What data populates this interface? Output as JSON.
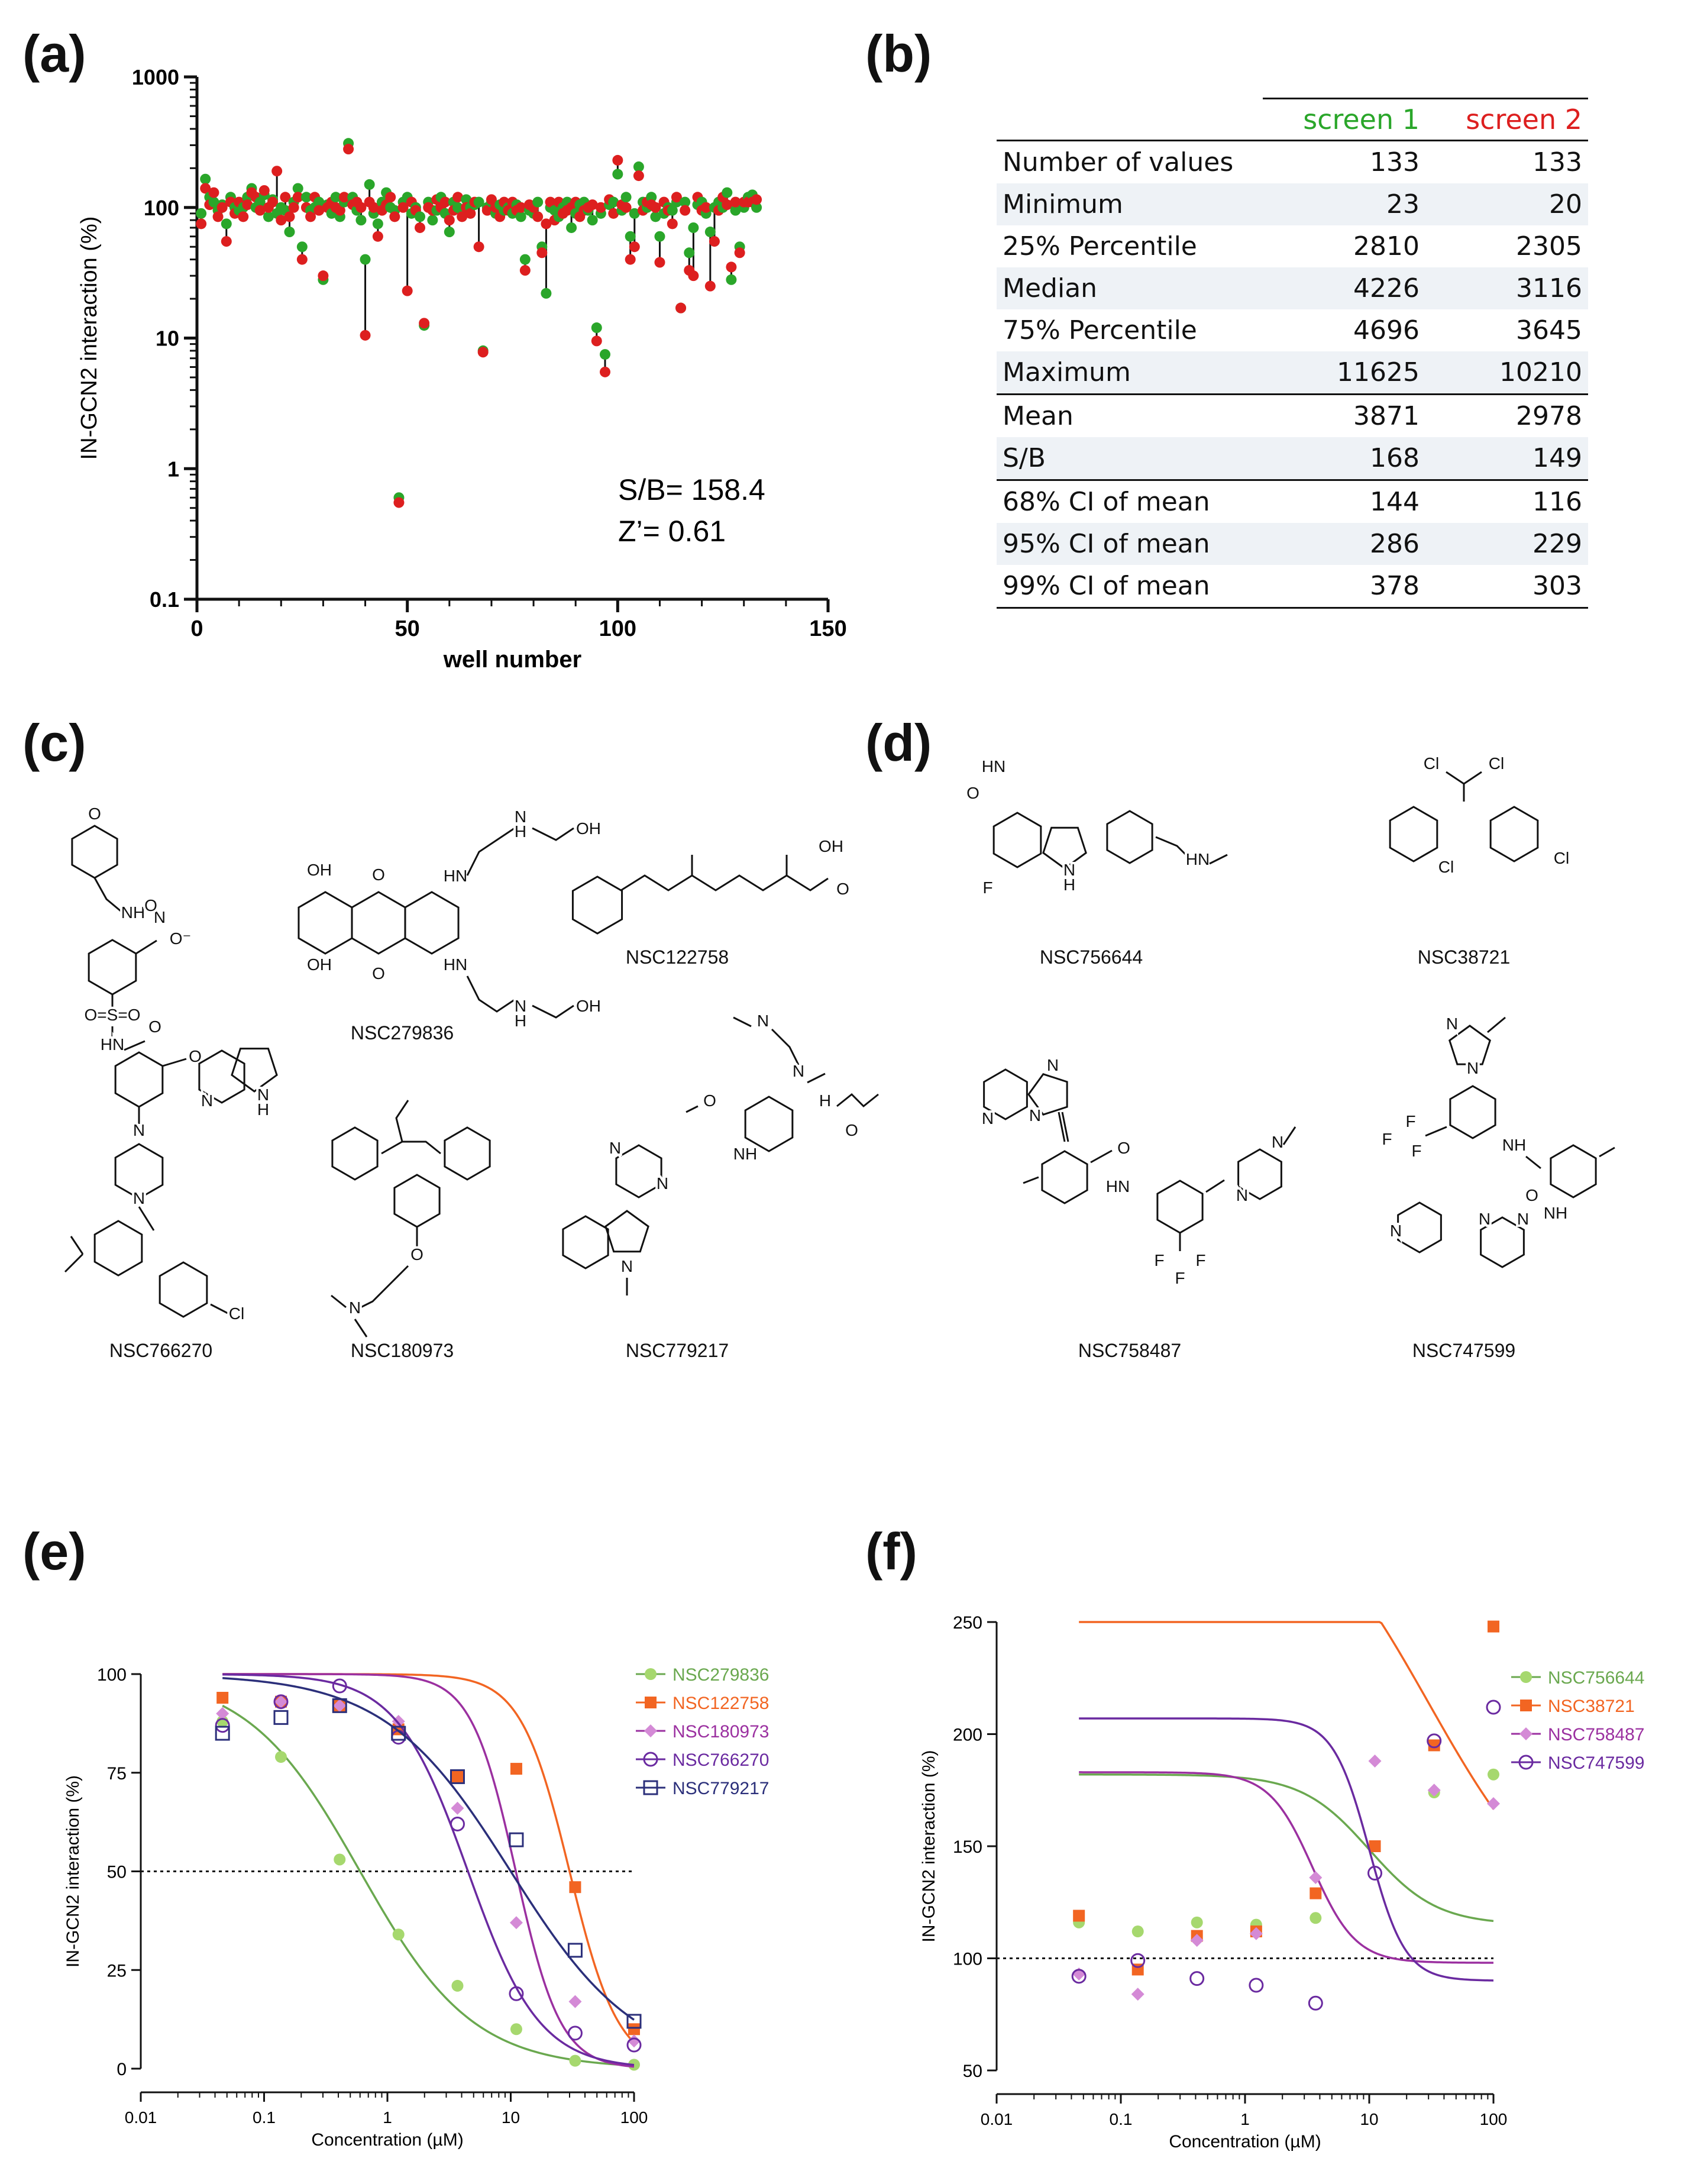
{
  "panel_letters": {
    "a": "(a)",
    "b": "(b)",
    "c": "(c)",
    "d": "(d)",
    "e": "(e)",
    "f": "(f)"
  },
  "colors": {
    "screen1": "#2aa62a",
    "screen2": "#dd1f1f",
    "green": "#6aa84f",
    "orange": "#f26522",
    "magenta": "#9b30a0",
    "purple": "#6a2aa0",
    "navy": "#2b2f7a",
    "lightgreen": "#a6d86e",
    "lightmagenta": "#d48ad6"
  },
  "chart_data": [
    {
      "id": "a",
      "type": "scatter",
      "xlabel": "well number",
      "ylabel": "IN-GCN2 interaction (%)",
      "yscale": "log",
      "xlim": [
        0,
        150
      ],
      "ylim": [
        0.1,
        1000
      ],
      "xticks": [
        "0",
        "50",
        "100",
        "150"
      ],
      "yticks": [
        "0.1",
        "1",
        "10",
        "100",
        "1000"
      ],
      "annotations": [
        "S/B= 158.4",
        "Z’= 0.61"
      ],
      "series": [
        {
          "name": "screen 1",
          "color": "#2aa62a"
        },
        {
          "name": "screen 2",
          "color": "#dd1f1f"
        }
      ],
      "points": [
        [
          1,
          90,
          75
        ],
        [
          2,
          165,
          140
        ],
        [
          3,
          120,
          105
        ],
        [
          4,
          110,
          130
        ],
        [
          5,
          95,
          85
        ],
        [
          6,
          105,
          100
        ],
        [
          7,
          75,
          55
        ],
        [
          8,
          120,
          110
        ],
        [
          9,
          100,
          90
        ],
        [
          10,
          95,
          110
        ],
        [
          11,
          100,
          85
        ],
        [
          12,
          120,
          105
        ],
        [
          13,
          140,
          130
        ],
        [
          14,
          100,
          120
        ],
        [
          15,
          110,
          95
        ],
        [
          16,
          125,
          135
        ],
        [
          17,
          85,
          100
        ],
        [
          18,
          115,
          110
        ],
        [
          19,
          90,
          190
        ],
        [
          20,
          100,
          80
        ],
        [
          21,
          95,
          120
        ],
        [
          22,
          65,
          85
        ],
        [
          23,
          110,
          100
        ],
        [
          24,
          140,
          120
        ],
        [
          25,
          50,
          40
        ],
        [
          26,
          120,
          100
        ],
        [
          27,
          95,
          85
        ],
        [
          28,
          100,
          120
        ],
        [
          29,
          110,
          95
        ],
        [
          30,
          28,
          30
        ],
        [
          31,
          105,
          100
        ],
        [
          32,
          90,
          110
        ],
        [
          33,
          120,
          100
        ],
        [
          34,
          85,
          95
        ],
        [
          35,
          110,
          120
        ],
        [
          36,
          310,
          280
        ],
        [
          37,
          120,
          105
        ],
        [
          38,
          95,
          110
        ],
        [
          39,
          80,
          100
        ],
        [
          40,
          40,
          10.5
        ],
        [
          41,
          150,
          110
        ],
        [
          42,
          90,
          100
        ],
        [
          43,
          75,
          60
        ],
        [
          44,
          110,
          95
        ],
        [
          45,
          130,
          105
        ],
        [
          46,
          100,
          120
        ],
        [
          47,
          95,
          85
        ],
        [
          48,
          0.6,
          0.55
        ],
        [
          49,
          110,
          100
        ],
        [
          50,
          120,
          23
        ],
        [
          51,
          90,
          110
        ],
        [
          52,
          100,
          95
        ],
        [
          53,
          85,
          70
        ],
        [
          54,
          12.5,
          13
        ],
        [
          55,
          110,
          100
        ],
        [
          56,
          80,
          95
        ],
        [
          57,
          95,
          115
        ],
        [
          58,
          120,
          100
        ],
        [
          59,
          90,
          110
        ],
        [
          60,
          65,
          80
        ],
        [
          61,
          110,
          95
        ],
        [
          62,
          100,
          120
        ],
        [
          63,
          95,
          85
        ],
        [
          64,
          115,
          100
        ],
        [
          65,
          100,
          90
        ],
        [
          66,
          105,
          110
        ],
        [
          67,
          110,
          50
        ],
        [
          68,
          8,
          7.8
        ],
        [
          69,
          100,
          95
        ],
        [
          70,
          110,
          115
        ],
        [
          71,
          90,
          100
        ],
        [
          72,
          105,
          85
        ],
        [
          73,
          95,
          110
        ],
        [
          74,
          100,
          95
        ],
        [
          75,
          90,
          110
        ],
        [
          76,
          105,
          95
        ],
        [
          77,
          85,
          100
        ],
        [
          78,
          40,
          33
        ],
        [
          79,
          95,
          105
        ],
        [
          80,
          90,
          100
        ],
        [
          81,
          110,
          85
        ],
        [
          82,
          50,
          45
        ],
        [
          83,
          22,
          75
        ],
        [
          84,
          100,
          110
        ],
        [
          85,
          95,
          80
        ],
        [
          86,
          85,
          110
        ],
        [
          87,
          100,
          90
        ],
        [
          88,
          110,
          95
        ],
        [
          89,
          70,
          100
        ],
        [
          90,
          90,
          110
        ],
        [
          91,
          105,
          85
        ],
        [
          92,
          110,
          95
        ],
        [
          93,
          95,
          100
        ],
        [
          94,
          80,
          105
        ],
        [
          95,
          12,
          9.5
        ],
        [
          96,
          90,
          100
        ],
        [
          97,
          7.5,
          5.5
        ],
        [
          98,
          105,
          115
        ],
        [
          99,
          110,
          90
        ],
        [
          100,
          180,
          230
        ],
        [
          101,
          95,
          105
        ],
        [
          102,
          120,
          100
        ],
        [
          103,
          60,
          40
        ],
        [
          104,
          90,
          50
        ],
        [
          105,
          205,
          175
        ],
        [
          106,
          110,
          95
        ],
        [
          107,
          100,
          110
        ],
        [
          108,
          120,
          105
        ],
        [
          109,
          85,
          100
        ],
        [
          110,
          60,
          38
        ],
        [
          111,
          90,
          110
        ],
        [
          112,
          100,
          95
        ],
        [
          113,
          95,
          75
        ],
        [
          114,
          110,
          120
        ],
        [
          115,
          17,
          17
        ],
        [
          116,
          110,
          95
        ],
        [
          117,
          45,
          33
        ],
        [
          118,
          70,
          30
        ],
        [
          119,
          105,
          120
        ],
        [
          120,
          110,
          95
        ],
        [
          121,
          90,
          100
        ],
        [
          122,
          65,
          25
        ],
        [
          123,
          100,
          55
        ],
        [
          124,
          110,
          95
        ],
        [
          125,
          100,
          120
        ],
        [
          126,
          130,
          105
        ],
        [
          127,
          28,
          35
        ],
        [
          128,
          95,
          110
        ],
        [
          129,
          50,
          45
        ],
        [
          130,
          100,
          110
        ],
        [
          131,
          120,
          110
        ],
        [
          132,
          125,
          110
        ],
        [
          133,
          100,
          115
        ]
      ]
    },
    {
      "id": "b",
      "type": "table",
      "columns": [
        "",
        "screen 1",
        "screen 2"
      ],
      "rows": [
        {
          "label": "Number of values",
          "s1": "133",
          "s2": "133"
        },
        {
          "label": "Minimum",
          "s1": "23",
          "s2": "20"
        },
        {
          "label": "25% Percentile",
          "s1": "2810",
          "s2": "2305"
        },
        {
          "label": "Median",
          "s1": "4226",
          "s2": "3116"
        },
        {
          "label": "75% Percentile",
          "s1": "4696",
          "s2": "3645"
        },
        {
          "label": "Maximum",
          "s1": "11625",
          "s2": "10210"
        },
        {
          "label": "Mean",
          "s1": "3871",
          "s2": "2978"
        },
        {
          "label": "S/B",
          "s1": "168",
          "s2": "149"
        },
        {
          "label": "68% CI of mean",
          "s1": "144",
          "s2": "116"
        },
        {
          "label": "95% CI of mean",
          "s1": "286",
          "s2": "229"
        },
        {
          "label": "99% CI of mean",
          "s1": "378",
          "s2": "303"
        }
      ]
    },
    {
      "id": "e",
      "type": "line",
      "xscale": "log",
      "xlabel": "Concentration (µM)",
      "ylabel": "IN-GCN2 interaction (%)",
      "xlim": [
        0.01,
        100
      ],
      "ylim": [
        0,
        100
      ],
      "xticks": [
        "0.01",
        "0.1",
        "1",
        "10",
        "100"
      ],
      "yticks": [
        "0",
        "25",
        "50",
        "75",
        "100"
      ],
      "reference_line": 50,
      "x": [
        0.046,
        0.137,
        0.41,
        1.23,
        3.7,
        11.1,
        33.3,
        100
      ],
      "series": [
        {
          "name": "NSC279836",
          "color": "#6aa84f",
          "pointColor": "#a6d86e",
          "marker": "dot",
          "values": [
            88,
            79,
            53,
            34,
            21,
            10,
            2,
            1
          ],
          "fit": {
            "top": 100,
            "bottom": 0,
            "ic50": 0.6,
            "hill": 0.95
          }
        },
        {
          "name": "NSC122758",
          "color": "#f26522",
          "pointColor": "#f26522",
          "marker": "square",
          "values": [
            94,
            93,
            92,
            86,
            74,
            76,
            46,
            10
          ],
          "fit": {
            "top": 100,
            "bottom": 0,
            "ic50": 30,
            "hill": 2.2
          }
        },
        {
          "name": "NSC180973",
          "color": "#9b30a0",
          "pointColor": "#d48ad6",
          "marker": "diamond",
          "values": [
            90,
            93,
            92,
            88,
            66,
            37,
            17,
            7
          ],
          "fit": {
            "top": 100,
            "bottom": 0,
            "ic50": 11,
            "hill": 2.4
          }
        },
        {
          "name": "NSC766270",
          "color": "#6a2aa0",
          "pointColor": "#6a2aa0",
          "marker": "circle",
          "values": [
            87,
            93,
            97,
            84,
            62,
            19,
            9,
            6
          ],
          "fit": {
            "top": 100,
            "bottom": 0,
            "ic50": 4.5,
            "hill": 1.5
          }
        },
        {
          "name": "NSC779217",
          "color": "#2b2f7a",
          "pointColor": "#2b2f7a",
          "marker": "opensquare",
          "values": [
            85,
            89,
            92,
            85,
            74,
            58,
            30,
            12
          ],
          "fit": {
            "top": 100,
            "bottom": 0,
            "ic50": 10,
            "hill": 0.85
          }
        }
      ]
    },
    {
      "id": "f",
      "type": "line",
      "xscale": "log",
      "xlabel": "Concentration (µM)",
      "ylabel": "IN-GCN2 interaction (%)",
      "xlim": [
        0.01,
        100
      ],
      "ylim": [
        50,
        250
      ],
      "xticks": [
        "0.01",
        "0.1",
        "1",
        "10",
        "100"
      ],
      "yticks": [
        "50",
        "100",
        "150",
        "200",
        "250"
      ],
      "reference_line": 100,
      "x": [
        0.046,
        0.137,
        0.41,
        1.23,
        3.7,
        11.1,
        33.3,
        100
      ],
      "series": [
        {
          "name": "NSC756644",
          "color": "#6aa84f",
          "pointColor": "#a6d86e",
          "marker": "dot",
          "values": [
            116,
            112,
            116,
            115,
            118,
            150,
            174,
            182
          ],
          "fit": {
            "top": 182,
            "bottom": 115,
            "ic50": 10,
            "hill": 1.6
          }
        },
        {
          "name": "NSC38721",
          "color": "#f26522",
          "pointColor": "#f26522",
          "marker": "square",
          "values": [
            119,
            95,
            110,
            112,
            129,
            150,
            195,
            248
          ],
          "fit": {
            "top": 320,
            "bottom": 108,
            "ic50": 30,
            "hill": 0.8
          }
        },
        {
          "name": "NSC758487",
          "color": "#9b30a0",
          "pointColor": "#d48ad6",
          "marker": "diamond",
          "values": [
            93,
            84,
            108,
            111,
            136,
            188,
            175,
            169
          ],
          "fit": {
            "top": 183,
            "bottom": 98,
            "ic50": 3.5,
            "hill": 2.5
          }
        },
        {
          "name": "NSC747599",
          "color": "#6a2aa0",
          "pointColor": "#6a2aa0",
          "marker": "circle",
          "values": [
            92,
            99,
            91,
            88,
            80,
            138,
            197,
            212
          ],
          "fit": {
            "top": 207,
            "bottom": 90,
            "ic50": 10,
            "hill": 3
          }
        }
      ]
    }
  ],
  "compounds_c": [
    {
      "name": "NSC766270",
      "color": "#6a2aa0"
    },
    {
      "name": "NSC279836",
      "color": "#6aa84f"
    },
    {
      "name": "NSC122758",
      "color": "#f26522"
    },
    {
      "name": "NSC180973",
      "color": "#9b30a0"
    },
    {
      "name": "NSC779217",
      "color": "#2b2f7a"
    }
  ],
  "compounds_d": [
    {
      "name": "NSC756644",
      "color": "#6aa84f"
    },
    {
      "name": "NSC38721",
      "color": "#f26522"
    },
    {
      "name": "NSC758487",
      "color": "#9b30a0"
    },
    {
      "name": "NSC747599",
      "color": "#6a2aa0"
    }
  ],
  "structure_atoms": {
    "c1": [
      "O",
      "NH",
      "N",
      "O",
      "O⁻",
      "O=S=O",
      "HN",
      "O",
      "O",
      "N",
      "N",
      "N",
      "H",
      "N",
      "Cl"
    ],
    "c2": [
      "OH",
      "O",
      "HN",
      "N",
      "H",
      "OH",
      "OH",
      "O",
      "HN",
      "N",
      "H",
      "OH"
    ],
    "c3": [
      "OH",
      "O"
    ],
    "c4": [
      "O",
      "N"
    ],
    "c5": [
      "N",
      "N",
      "H",
      "O",
      "N",
      "N",
      "N",
      "NH",
      "N",
      "O"
    ],
    "d1": [
      "HN",
      "O",
      "F",
      "N",
      "H",
      "HN"
    ],
    "d2": [
      "Cl",
      "Cl",
      "Cl",
      "Cl"
    ],
    "d3": [
      "N",
      "N",
      "N",
      "O",
      "HN",
      "N",
      "N",
      "F",
      "F",
      "F"
    ],
    "d4": [
      "N",
      "N",
      "F",
      "F",
      "F",
      "NH",
      "O",
      "N",
      "N",
      "N",
      "NH"
    ]
  }
}
